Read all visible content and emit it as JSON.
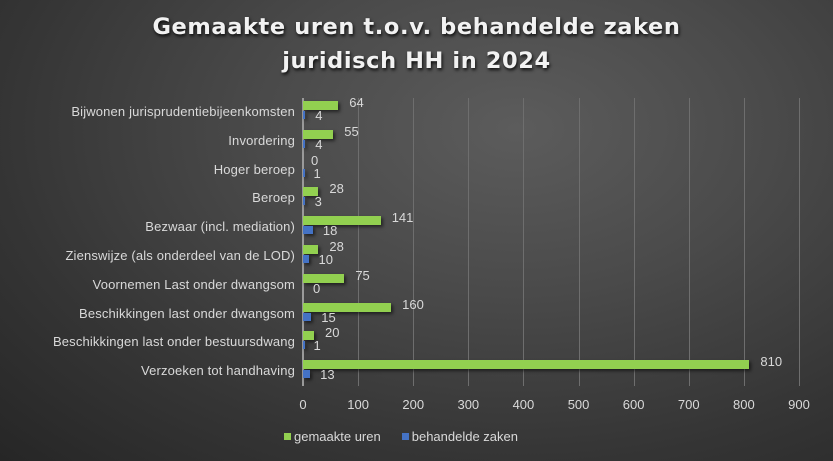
{
  "chart_data": {
    "type": "bar",
    "orientation": "horizontal",
    "title": "Gemaakte uren t.o.v. behandelde zaken juridisch HH in 2024",
    "title_lines": [
      "Gemaakte uren t.o.v. behandelde zaken",
      "juridisch HH in 2024"
    ],
    "categories": [
      "Bijwonen jurisprudentiebijeenkomsten",
      "Invordering",
      "Hoger beroep",
      "Beroep",
      "Bezwaar (incl. mediation)",
      "Zienswijze (als onderdeel van de LOD)",
      "Voornemen Last onder dwangsom",
      "Beschikkingen last onder dwangsom",
      "Beschikkingen last onder bestuursdwang",
      "Verzoeken tot handhaving"
    ],
    "series": [
      {
        "name": "gemaakte uren",
        "color": "#92d050",
        "values": [
          64,
          55,
          0,
          28,
          141,
          28,
          75,
          160,
          20,
          810
        ]
      },
      {
        "name": "behandelde zaken",
        "color": "#4472c4",
        "values": [
          4,
          4,
          1,
          3,
          18,
          10,
          0,
          15,
          1,
          13
        ]
      }
    ],
    "xlabel": "",
    "ylabel": "",
    "xlim": [
      0,
      900
    ],
    "x_ticks": [
      "0",
      "100",
      "200",
      "300",
      "400",
      "500",
      "600",
      "700",
      "800",
      "900"
    ],
    "grid": "vertical",
    "data_labels": true,
    "legend_position": "bottom"
  },
  "legend": [
    {
      "label": "gemaakte uren",
      "color": "#92d050"
    },
    {
      "label": "behandelde zaken",
      "color": "#4472c4"
    }
  ]
}
